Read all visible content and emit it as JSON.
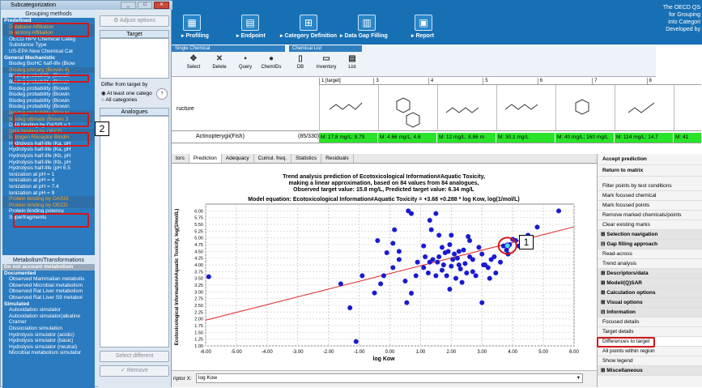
{
  "toolbar": {
    "items": [
      {
        "label": "▸ Profiling"
      },
      {
        "label": "▸ Endpoint"
      },
      {
        "label": "▸ Category Definition"
      },
      {
        "label": "▸ Data Gap Filling"
      },
      {
        "label": "▸ Report"
      }
    ],
    "right_text": [
      "The OECD QS",
      "for Grouping",
      "into Categori",
      "",
      "Developed by"
    ]
  },
  "strip": {
    "h1": "Single Chemical",
    "h2": "Chemical List",
    "items": [
      "Select",
      "Delete",
      "Query",
      "ChemIDs",
      "DB",
      "Inventory",
      "List"
    ]
  },
  "grid": {
    "cols": [
      "1 [target]",
      "3",
      "4",
      "5",
      "6",
      "7",
      "8"
    ],
    "structure_label": "ructure",
    "row_label": "Actinopterygii(Fish)",
    "row_count": "(85/330)",
    "cells": [
      "M: 17.8 mg/L; 9.79",
      "M: 4.66 mg/L; 4.6",
      "M: 12 mg/L; 8.86 m",
      "M: 30.1 mg/L",
      "M: 40 mg/L; 160 mg/L",
      "M: 114 mg/L; 14.7",
      "M: 41"
    ]
  },
  "tabs": [
    "tors",
    "Prediction",
    "Adequacy",
    "Cumul. freq.",
    "Statistics",
    "Residuals"
  ],
  "chart_data": {
    "type": "scatter",
    "title": [
      "Trend analysis prediction of Ecotoxicological Information#Aquatic Toxicity,",
      "making a linear approximation, based on 84 values from 84 analogues,",
      "Observed target value: 15.8 mg/L, Predicted target value: 6.34 mg/L"
    ],
    "equation": "Model equation:   Ecotoxicological Information#Aquatic Toxicity = +3.68 +0.288 * log Kow,  log(1/mol/L)",
    "xlabel": "log Kow",
    "ylabel": "Ecotoxicological Information#Aquatic Toxicity, log(1/mol/L)",
    "xlim": [
      -6,
      6
    ],
    "ylim": [
      1,
      6.25
    ],
    "xticks": [
      "-6.00",
      "-5.00",
      "-4.00",
      "-3.00",
      "-2.00",
      "-1.00",
      "0.00",
      "1.00",
      "2.00",
      "3.00",
      "4.00",
      "5.00",
      "6.00"
    ],
    "yticks": [
      "1.00",
      "1.25",
      "1.50",
      "1.75",
      "2.00",
      "2.25",
      "2.50",
      "2.75",
      "3.00",
      "3.25",
      "3.50",
      "3.75",
      "4.00",
      "4.25",
      "4.50",
      "4.75",
      "5.00",
      "5.25",
      "5.50",
      "5.75",
      "6.00"
    ],
    "line": {
      "intercept": 3.68,
      "slope": 0.288
    },
    "target": {
      "x": 3.83,
      "y": 4.71
    },
    "points": [
      [
        -5.9,
        3.56
      ],
      [
        -1.6,
        3.3
      ],
      [
        -1.3,
        2.41
      ],
      [
        -1.1,
        1.16
      ],
      [
        -0.9,
        3.6
      ],
      [
        -0.5,
        2.96
      ],
      [
        -0.3,
        3.3
      ],
      [
        -0.1,
        4.45
      ],
      [
        0.1,
        4.8
      ],
      [
        0.3,
        4.2
      ],
      [
        0.5,
        3.4
      ],
      [
        0.55,
        2.6
      ],
      [
        0.7,
        2.95
      ],
      [
        0.9,
        4.1
      ],
      [
        0.1,
        3.9
      ],
      [
        -0.2,
        3.6
      ],
      [
        -0.4,
        4.9
      ],
      [
        0.15,
        5.3
      ],
      [
        0.3,
        4.5
      ],
      [
        1.1,
        3.9
      ],
      [
        1.15,
        4.3
      ],
      [
        1.3,
        4.1
      ],
      [
        1.4,
        4.2
      ],
      [
        1.5,
        3.6
      ],
      [
        1.55,
        4.1
      ],
      [
        1.6,
        4.3
      ],
      [
        1.7,
        3.8
      ],
      [
        1.8,
        4.45
      ],
      [
        1.85,
        3.6
      ],
      [
        1.9,
        4.5
      ],
      [
        1.95,
        3.1
      ],
      [
        2.0,
        3.95
      ],
      [
        2.05,
        4.2
      ],
      [
        2.1,
        4.4
      ],
      [
        2.15,
        3.5
      ],
      [
        2.2,
        4.25
      ],
      [
        2.25,
        4.0
      ],
      [
        2.3,
        3.85
      ],
      [
        2.4,
        4.55
      ],
      [
        2.5,
        3.7
      ],
      [
        2.55,
        5.05
      ],
      [
        2.6,
        4.9
      ],
      [
        2.7,
        4.2
      ],
      [
        2.8,
        3.6
      ],
      [
        2.9,
        4.65
      ],
      [
        3.0,
        2.6
      ],
      [
        3.05,
        4.0
      ],
      [
        3.1,
        4.0
      ],
      [
        3.2,
        3.9
      ],
      [
        3.3,
        4.2
      ],
      [
        3.4,
        4.3
      ],
      [
        3.6,
        4.1
      ],
      [
        3.7,
        4.7
      ],
      [
        3.8,
        4.55
      ],
      [
        3.85,
        4.4
      ],
      [
        3.9,
        4.75
      ],
      [
        4.0,
        4.95
      ],
      [
        4.1,
        4.9
      ],
      [
        4.2,
        4.7
      ],
      [
        4.5,
        5.1
      ],
      [
        4.6,
        4.8
      ],
      [
        4.8,
        5.4
      ],
      [
        5.5,
        6.0
      ],
      [
        0.6,
        6.0
      ],
      [
        0.7,
        5.9
      ],
      [
        1.3,
        5.65
      ],
      [
        1.35,
        5.3
      ],
      [
        1.5,
        5.9
      ],
      [
        1.6,
        5.1
      ],
      [
        1.7,
        4.65
      ],
      [
        1.95,
        4.75
      ],
      [
        2.25,
        4.5
      ],
      [
        2.6,
        4.3
      ],
      [
        3.0,
        4.4
      ],
      [
        3.25,
        3.5
      ],
      [
        3.45,
        3.7
      ],
      [
        2.35,
        3.35
      ],
      [
        1.25,
        3.7
      ],
      [
        1.1,
        4.7
      ],
      [
        0.85,
        3.6
      ],
      [
        2.0,
        5.1
      ],
      [
        2.45,
        4.05
      ],
      [
        1.75,
        4.0
      ],
      [
        2.7,
        3.75
      ]
    ]
  },
  "callouts": [
    "1",
    "2"
  ],
  "bottom": {
    "label": "riptor X:",
    "value": "log Kow"
  },
  "right_panel": {
    "accept": "Accept prediction",
    "return": "Return to matrix",
    "items": [
      "Filter points by test conditions",
      "Mark focused chemical",
      "Mark focused points",
      "Remove marked chemicals/points",
      "Clear existing marks"
    ],
    "sections": [
      {
        "title": "Selection navigation"
      },
      {
        "title": "Gap filling approach",
        "items": [
          "Read-across",
          "Trend analysis"
        ]
      },
      {
        "title": "Descriptors/data"
      },
      {
        "title": "Model/(Q)SAR"
      },
      {
        "title": "Calculation options"
      },
      {
        "title": "Visual options"
      },
      {
        "title": "Information",
        "items": [
          "Focused details",
          "Target details",
          "Differences to target",
          "All points within region",
          "Show legend"
        ]
      },
      {
        "title": "Miscellaneous"
      }
    ]
  },
  "dialog": {
    "title": "Subcategorization",
    "grouping_header": "Grouping methods",
    "list": [
      {
        "t": "Predefined",
        "h": true
      },
      {
        "t": "Database Affiliation",
        "hl": true
      },
      {
        "t": "Inventory Affiliation",
        "hl": true
      },
      {
        "t": "OECD HPV Chemical Categ"
      },
      {
        "t": "Substance Type"
      },
      {
        "t": "US-EPA New Chemical Cat"
      },
      {
        "t": "General Mechanistic",
        "h": true
      },
      {
        "t": "Biodeg BioHC half-life (Biow"
      },
      {
        "t": "Biodeg primary (Biowin 4)",
        "hl": true
      },
      {
        "t": "Biodeg probability (Biowin"
      },
      {
        "t": "Biodeg probability (Biowin"
      },
      {
        "t": "Biodeg probability (Biowin"
      },
      {
        "t": "Biodeg probability (Biowin"
      },
      {
        "t": "Biodeg probability (Biowin"
      },
      {
        "t": "Biodeg probability (Biowin"
      },
      {
        "t": "Biodeg probability (Biowin",
        "hl": true
      },
      {
        "t": "Biodeg ultimate (Biowin 3",
        "hl": true
      },
      {
        "t": "DNA binding by OASIS v.1"
      },
      {
        "t": "DNA binding by OECD",
        "hl": true
      },
      {
        "t": "Estrogen Receptor Bindin",
        "hl": true
      },
      {
        "t": "Hydrolysis half-life (Ka, pH"
      },
      {
        "t": "Hydrolysis half-life (Ka, pH"
      },
      {
        "t": "Hydrolysis half-life (Kb, pH"
      },
      {
        "t": "Hydrolysis half-life (Kb, pH"
      },
      {
        "t": "Hydrolysis half-life (pH 6.5"
      },
      {
        "t": "Ionization at pH = 1"
      },
      {
        "t": "Ionization at pH = 4"
      },
      {
        "t": "Ionization at pH = 7.4"
      },
      {
        "t": "Ionization at pH = 9"
      },
      {
        "t": "Protein binding by OASIS",
        "hl": true
      },
      {
        "t": "Protein binding by OECD",
        "hl": true
      },
      {
        "t": "Protein binding potency"
      },
      {
        "t": "Superfragments"
      }
    ],
    "meta_header": "Metabolism/Transformations",
    "meta": [
      {
        "t": "Do not account metabolism",
        "sel": true
      },
      {
        "t": "Documented",
        "h": true
      },
      {
        "t": "Observed Mammalian metabolis"
      },
      {
        "t": "Observed Microbial metabolism"
      },
      {
        "t": "Observed Rat Liver metabolism"
      },
      {
        "t": "Observed Rat Liver S9 metabol"
      },
      {
        "t": "Simulated",
        "h": true
      },
      {
        "t": "Autoxidation simulator"
      },
      {
        "t": "Autoxidation simulator(alkaline"
      },
      {
        "t": "Cramer"
      },
      {
        "t": "Dissociation simulation"
      },
      {
        "t": "Hydrolysis simulator (acidic)"
      },
      {
        "t": "Hydrolysis simulator (basic)"
      },
      {
        "t": "Hydrolysis simulator (neutral)"
      },
      {
        "t": "Microbial metabolism simulator"
      }
    ],
    "adjust": "Adjust options",
    "target": "Target",
    "differ": "Differ from target by",
    "opt1": "At least one catego",
    "opt2": "All categories",
    "analogues": "Analogues",
    "select_different": "Select different",
    "remove": "Remove"
  }
}
